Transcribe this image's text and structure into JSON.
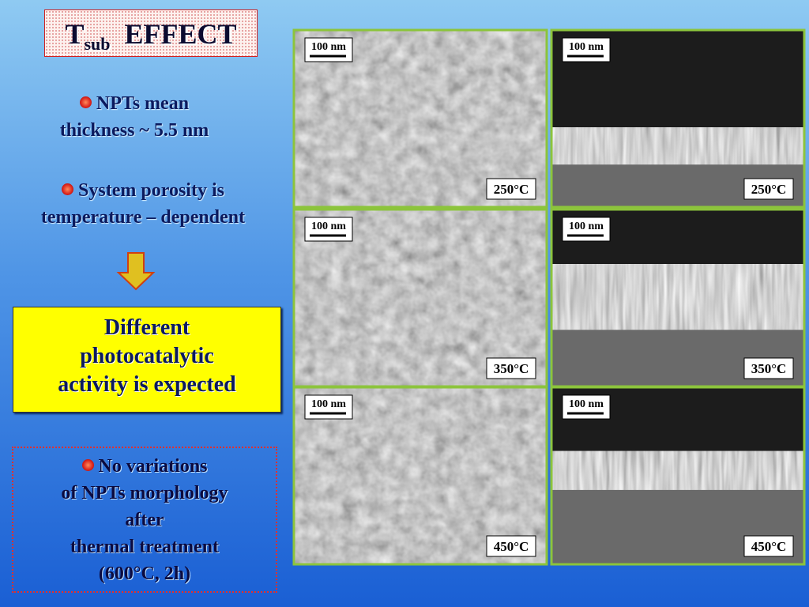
{
  "title": {
    "main": "T",
    "sub": "sub",
    "rest": "EFFECT"
  },
  "bullets": [
    {
      "lines": [
        "NPTs mean",
        "thickness ~ 5.5 nm"
      ]
    },
    {
      "lines": [
        "System porosity is",
        "temperature – dependent"
      ]
    }
  ],
  "highlight": {
    "lines": [
      "Different",
      "photocatalytic",
      "activity is expected"
    ]
  },
  "note": {
    "lines": [
      "No variations",
      "of NPTs morphology",
      "after",
      "thermal treatment",
      "(600°C, 2h)"
    ]
  },
  "panels": [
    {
      "scale": "100 nm",
      "temperature": "250°C"
    },
    {
      "scale": "100 nm",
      "temperature": "250°C"
    },
    {
      "scale": "100 nm",
      "temperature": "350°C"
    },
    {
      "scale": "100 nm",
      "temperature": "350°C"
    },
    {
      "scale": "100 nm",
      "temperature": "450°C"
    },
    {
      "scale": "100 nm",
      "temperature": "450°C"
    }
  ]
}
